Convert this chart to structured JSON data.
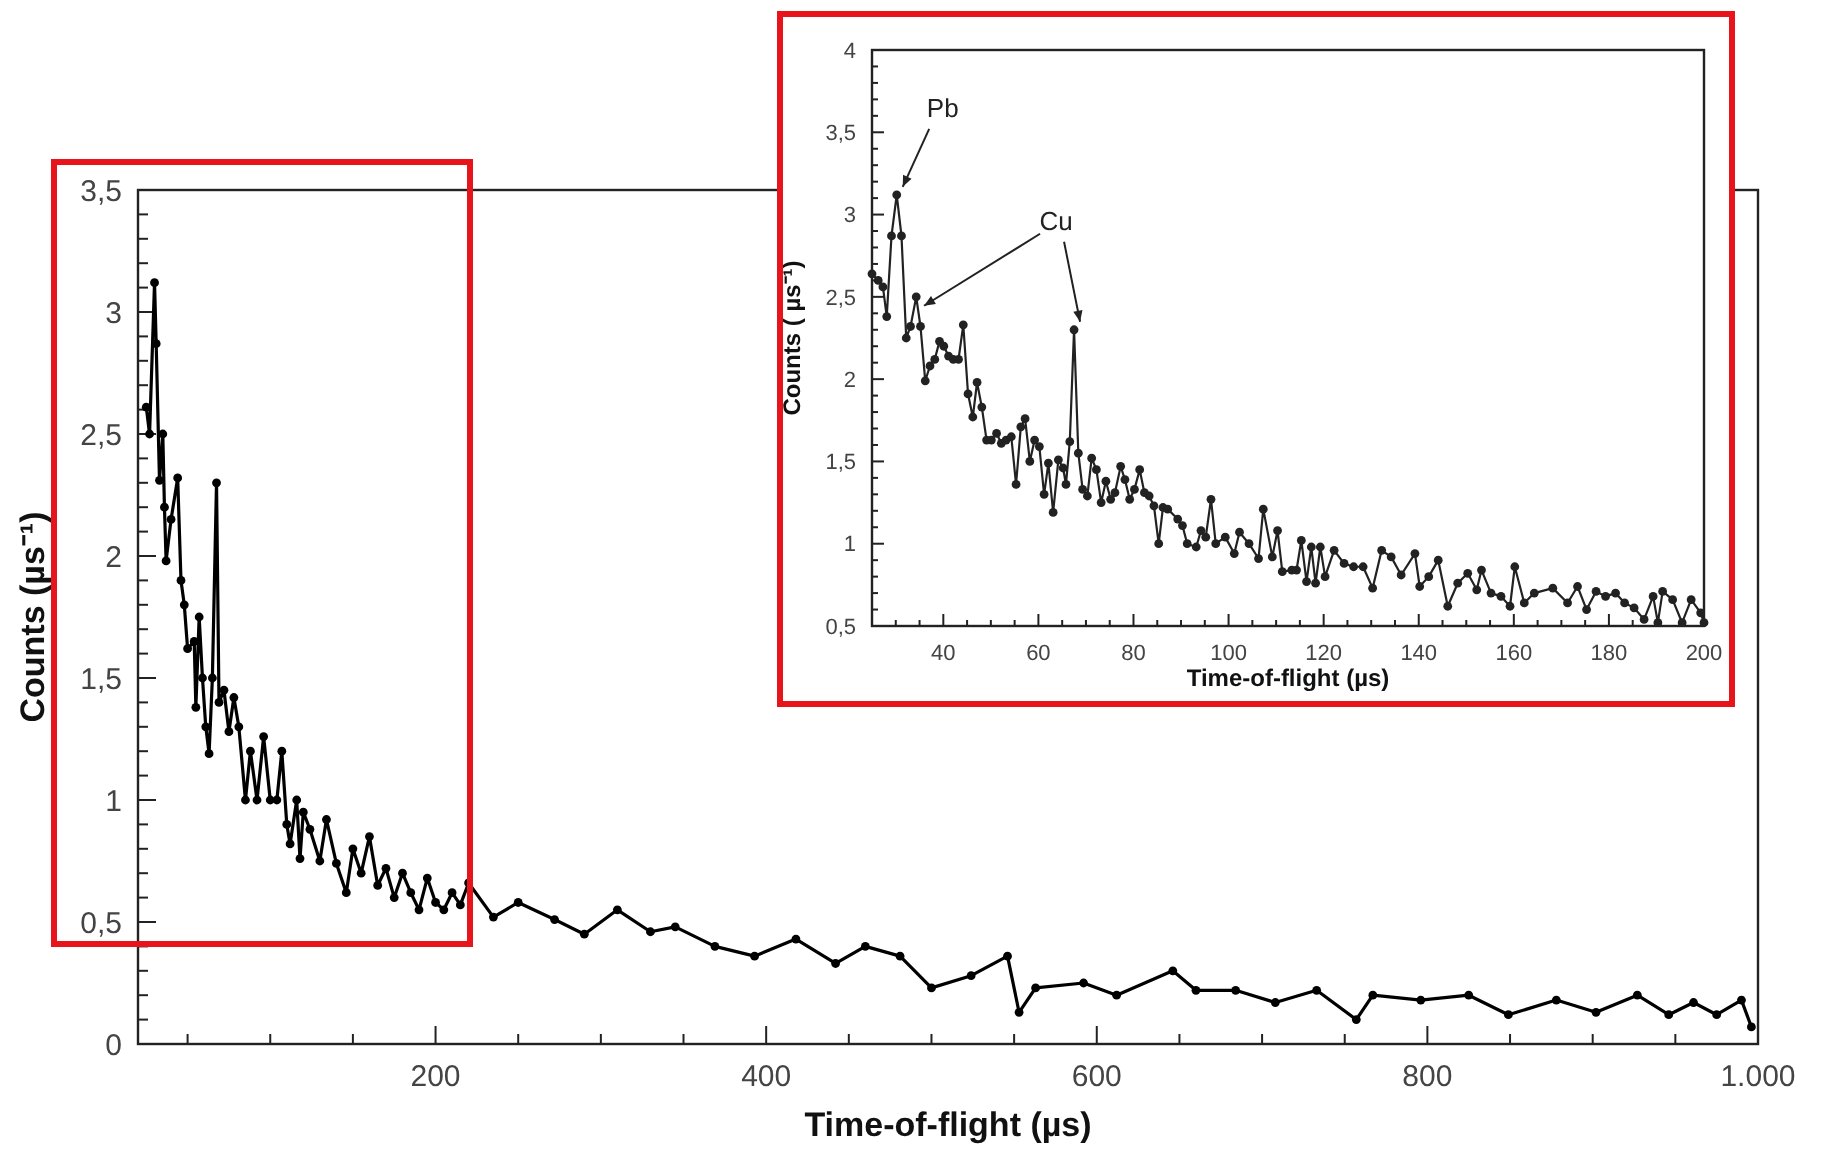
{
  "chart_data": [
    {
      "type": "line",
      "xlabel": "Time-of-flight (µs)",
      "ylabel": "Counts (µs⁻¹)",
      "xlim": [
        20,
        1000
      ],
      "ylim": [
        0,
        3.5
      ],
      "grid": false,
      "marker": "circle",
      "line_style": "solid",
      "xticks": [
        {
          "value": 50,
          "label": null
        },
        {
          "value": 100,
          "label": null
        },
        {
          "value": 150,
          "label": null
        },
        200,
        {
          "value": 250,
          "label": null
        },
        {
          "value": 300,
          "label": null
        },
        {
          "value": 350,
          "label": null
        },
        400,
        {
          "value": 450,
          "label": null
        },
        {
          "value": 500,
          "label": null
        },
        {
          "value": 550,
          "label": null
        },
        600,
        {
          "value": 650,
          "label": null
        },
        {
          "value": 700,
          "label": null
        },
        {
          "value": 750,
          "label": null
        },
        800,
        {
          "value": 850,
          "label": null
        },
        {
          "value": 900,
          "label": null
        },
        {
          "value": 950,
          "label": null
        },
        {
          "value": 1000,
          "label": "1.000"
        }
      ],
      "yticks": [
        0,
        {
          "value": 0.1,
          "label": null
        },
        {
          "value": 0.2,
          "label": null
        },
        {
          "value": 0.3,
          "label": null
        },
        {
          "value": 0.4,
          "label": null
        },
        {
          "value": 0.5,
          "label": "0,5"
        },
        {
          "value": 0.6,
          "label": null
        },
        {
          "value": 0.7,
          "label": null
        },
        {
          "value": 0.8,
          "label": null
        },
        {
          "value": 0.9,
          "label": null
        },
        1,
        {
          "value": 1.1,
          "label": null
        },
        {
          "value": 1.2,
          "label": null
        },
        {
          "value": 1.3,
          "label": null
        },
        {
          "value": 1.4,
          "label": null
        },
        {
          "value": 1.5,
          "label": "1,5"
        },
        {
          "value": 1.6,
          "label": null
        },
        {
          "value": 1.7,
          "label": null
        },
        {
          "value": 1.8,
          "label": null
        },
        {
          "value": 1.9,
          "label": null
        },
        2,
        {
          "value": 2.1,
          "label": null
        },
        {
          "value": 2.2,
          "label": null
        },
        {
          "value": 2.3,
          "label": null
        },
        {
          "value": 2.4,
          "label": null
        },
        {
          "value": 2.5,
          "label": "2,5"
        },
        {
          "value": 2.6,
          "label": null
        },
        {
          "value": 2.7,
          "label": null
        },
        {
          "value": 2.8,
          "label": null
        },
        {
          "value": 2.9,
          "label": null
        },
        3,
        {
          "value": 3.1,
          "label": null
        },
        {
          "value": 3.2,
          "label": null
        },
        {
          "value": 3.3,
          "label": null
        },
        {
          "value": 3.4,
          "label": null
        },
        {
          "value": 3.5,
          "label": "3,5"
        }
      ],
      "series": [
        {
          "color": "#000000",
          "x": [
            25,
            27,
            30,
            31,
            33,
            35,
            36,
            37,
            40,
            44,
            46,
            48,
            50,
            54,
            55,
            57,
            59,
            61,
            63,
            65,
            67.5,
            69,
            72,
            75,
            78,
            81,
            85,
            88,
            92,
            96,
            100,
            104,
            107,
            110,
            112,
            116,
            118,
            120,
            124,
            130,
            134,
            140,
            146,
            150,
            155,
            160,
            165,
            170,
            175,
            180,
            185,
            190,
            195,
            200,
            205,
            210,
            215,
            220,
            235,
            250,
            272,
            290,
            310,
            330,
            345,
            369,
            393,
            418,
            442,
            460,
            481,
            500,
            524,
            546,
            553,
            563,
            592,
            612,
            646,
            660,
            684,
            708,
            733,
            757,
            767,
            796,
            825,
            849,
            878,
            902,
            927,
            946,
            961,
            975,
            990,
            996
          ],
          "values": [
            2.61,
            2.5,
            3.12,
            2.87,
            2.31,
            2.5,
            2.2,
            1.98,
            2.15,
            2.32,
            1.9,
            1.8,
            1.62,
            1.65,
            1.38,
            1.75,
            1.5,
            1.3,
            1.19,
            1.5,
            2.3,
            1.4,
            1.45,
            1.28,
            1.42,
            1.3,
            1.0,
            1.2,
            1.0,
            1.26,
            1.0,
            1.0,
            1.2,
            0.9,
            0.82,
            1.0,
            0.76,
            0.95,
            0.88,
            0.75,
            0.92,
            0.74,
            0.62,
            0.8,
            0.7,
            0.85,
            0.65,
            0.72,
            0.6,
            0.7,
            0.62,
            0.55,
            0.68,
            0.58,
            0.55,
            0.62,
            0.57,
            0.66,
            0.52,
            0.58,
            0.51,
            0.45,
            0.55,
            0.46,
            0.48,
            0.4,
            0.36,
            0.43,
            0.33,
            0.4,
            0.36,
            0.23,
            0.28,
            0.36,
            0.13,
            0.23,
            0.25,
            0.2,
            0.3,
            0.22,
            0.22,
            0.17,
            0.22,
            0.1,
            0.2,
            0.18,
            0.2,
            0.12,
            0.18,
            0.13,
            0.2,
            0.12,
            0.17,
            0.12,
            0.18,
            0.07
          ]
        }
      ]
    },
    {
      "type": "line",
      "xlabel": "Time-of-flight (µs)",
      "ylabel": "Counts ( µs⁻¹)",
      "xlim": [
        25,
        200
      ],
      "ylim": [
        0.5,
        4
      ],
      "grid": false,
      "marker": "circle",
      "line_style": "solid",
      "xticks": [
        {
          "value": 30,
          "label": null
        },
        {
          "value": 35,
          "label": null
        },
        40,
        {
          "value": 45,
          "label": null
        },
        {
          "value": 50,
          "label": null
        },
        {
          "value": 55,
          "label": null
        },
        60,
        {
          "value": 65,
          "label": null
        },
        {
          "value": 70,
          "label": null
        },
        {
          "value": 75,
          "label": null
        },
        80,
        {
          "value": 85,
          "label": null
        },
        {
          "value": 90,
          "label": null
        },
        {
          "value": 95,
          "label": null
        },
        100,
        {
          "value": 105,
          "label": null
        },
        {
          "value": 110,
          "label": null
        },
        {
          "value": 115,
          "label": null
        },
        120,
        {
          "value": 125,
          "label": null
        },
        {
          "value": 130,
          "label": null
        },
        {
          "value": 135,
          "label": null
        },
        140,
        {
          "value": 145,
          "label": null
        },
        {
          "value": 150,
          "label": null
        },
        {
          "value": 155,
          "label": null
        },
        160,
        {
          "value": 165,
          "label": null
        },
        {
          "value": 170,
          "label": null
        },
        {
          "value": 175,
          "label": null
        },
        180,
        {
          "value": 185,
          "label": null
        },
        {
          "value": 190,
          "label": null
        },
        {
          "value": 195,
          "label": null
        },
        200
      ],
      "yticks": [
        {
          "value": 0.5,
          "label": "0,5"
        },
        {
          "value": 0.6,
          "label": null
        },
        {
          "value": 0.7,
          "label": null
        },
        {
          "value": 0.8,
          "label": null
        },
        {
          "value": 0.9,
          "label": null
        },
        1,
        {
          "value": 1.1,
          "label": null
        },
        {
          "value": 1.2,
          "label": null
        },
        {
          "value": 1.3,
          "label": null
        },
        {
          "value": 1.4,
          "label": null
        },
        {
          "value": 1.5,
          "label": "1,5"
        },
        {
          "value": 1.6,
          "label": null
        },
        {
          "value": 1.7,
          "label": null
        },
        {
          "value": 1.8,
          "label": null
        },
        {
          "value": 1.9,
          "label": null
        },
        2,
        {
          "value": 2.1,
          "label": null
        },
        {
          "value": 2.2,
          "label": null
        },
        {
          "value": 2.3,
          "label": null
        },
        {
          "value": 2.4,
          "label": null
        },
        {
          "value": 2.5,
          "label": "2,5"
        },
        {
          "value": 2.6,
          "label": null
        },
        {
          "value": 2.7,
          "label": null
        },
        {
          "value": 2.8,
          "label": null
        },
        {
          "value": 2.9,
          "label": null
        },
        3,
        {
          "value": 3.1,
          "label": null
        },
        {
          "value": 3.2,
          "label": null
        },
        {
          "value": 3.3,
          "label": null
        },
        {
          "value": 3.4,
          "label": null
        },
        {
          "value": 3.5,
          "label": "3,5"
        },
        {
          "value": 3.6,
          "label": null
        },
        {
          "value": 3.7,
          "label": null
        },
        {
          "value": 3.8,
          "label": null
        },
        {
          "value": 3.9,
          "label": null
        },
        4
      ],
      "annotations": [
        {
          "text": "Pb",
          "x": 30.2,
          "y": 3.12
        },
        {
          "text": "Cu",
          "x": 67.5,
          "y": 2.3
        }
      ],
      "series": [
        {
          "color": "#222222",
          "x": [
            25,
            26.3,
            27.3,
            28.1,
            29.1,
            30.2,
            31.2,
            32.2,
            33.1,
            34.3,
            35.2,
            36.2,
            37.2,
            38.2,
            39.2,
            40.1,
            41.1,
            42.1,
            43.2,
            44.2,
            45.2,
            46.2,
            47.1,
            48.1,
            49.1,
            50.1,
            51.2,
            52.2,
            53.2,
            54.3,
            55.3,
            56.3,
            57.2,
            58.2,
            59.2,
            60.2,
            61.2,
            62.1,
            63.1,
            64.2,
            65.2,
            65.8,
            66.6,
            67.5,
            68.4,
            69.3,
            70.3,
            71.2,
            72.2,
            73.2,
            74.2,
            75.2,
            76.1,
            77.3,
            78.2,
            79.2,
            80.2,
            81.3,
            82.3,
            83.3,
            84.3,
            85.3,
            86.2,
            87.2,
            89.3,
            90.3,
            91.3,
            93.2,
            94.2,
            95.2,
            96.3,
            97.3,
            99.3,
            101.2,
            102.3,
            104.3,
            106.3,
            107.3,
            109.2,
            110.3,
            111.3,
            113.3,
            114.3,
            115.3,
            116.4,
            117.4,
            118.3,
            119.3,
            120.3,
            122.2,
            124.3,
            126.3,
            128.3,
            130.3,
            132.2,
            134.2,
            136.3,
            139.2,
            140.2,
            142.1,
            144.1,
            146.1,
            148.2,
            150.3,
            152.2,
            153.2,
            155.2,
            157.3,
            159.2,
            160.2,
            162.2,
            164.3,
            168.2,
            171.3,
            173.4,
            175.3,
            177.3,
            179.3,
            181.4,
            183.3,
            185.3,
            187.4,
            189.3,
            190.3,
            191.3,
            193.4,
            195.4,
            197.3,
            199.3,
            200
          ],
          "values": [
            2.64,
            2.6,
            2.56,
            2.38,
            2.87,
            3.12,
            2.87,
            2.25,
            2.32,
            2.5,
            2.32,
            1.99,
            2.08,
            2.12,
            2.23,
            2.2,
            2.14,
            2.12,
            2.12,
            2.33,
            1.91,
            1.77,
            1.98,
            1.83,
            1.63,
            1.63,
            1.67,
            1.61,
            1.63,
            1.65,
            1.36,
            1.71,
            1.76,
            1.5,
            1.63,
            1.59,
            1.3,
            1.49,
            1.19,
            1.51,
            1.46,
            1.36,
            1.62,
            2.3,
            1.55,
            1.33,
            1.29,
            1.52,
            1.45,
            1.25,
            1.38,
            1.27,
            1.31,
            1.47,
            1.39,
            1.27,
            1.33,
            1.45,
            1.31,
            1.29,
            1.23,
            1.0,
            1.22,
            1.21,
            1.15,
            1.11,
            1.0,
            0.98,
            1.08,
            1.04,
            1.27,
            1.0,
            1.04,
            0.94,
            1.07,
            1.0,
            0.91,
            1.21,
            0.92,
            1.08,
            0.83,
            0.84,
            0.84,
            1.02,
            0.77,
            0.98,
            0.76,
            0.98,
            0.8,
            0.96,
            0.88,
            0.86,
            0.86,
            0.73,
            0.96,
            0.92,
            0.81,
            0.94,
            0.74,
            0.8,
            0.9,
            0.62,
            0.76,
            0.82,
            0.72,
            0.84,
            0.7,
            0.68,
            0.62,
            0.86,
            0.64,
            0.7,
            0.73,
            0.64,
            0.74,
            0.6,
            0.71,
            0.68,
            0.7,
            0.64,
            0.61,
            0.54,
            0.68,
            0.52,
            0.71,
            0.66,
            0.52,
            0.66,
            0.58,
            0.52
          ]
        }
      ]
    }
  ]
}
